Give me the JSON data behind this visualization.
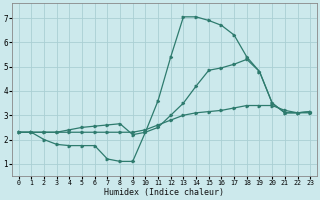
{
  "xlabel": "Humidex (Indice chaleur)",
  "bg_color": "#cce9ec",
  "grid_color": "#aacfd4",
  "line_color": "#2e7b6e",
  "xlim": [
    -0.5,
    23.5
  ],
  "ylim": [
    0.5,
    7.6
  ],
  "yticks": [
    1,
    2,
    3,
    4,
    5,
    6,
    7
  ],
  "xticks": [
    0,
    1,
    2,
    3,
    4,
    5,
    6,
    7,
    8,
    9,
    10,
    11,
    12,
    13,
    14,
    15,
    16,
    17,
    18,
    19,
    20,
    21,
    22,
    23
  ],
  "curve1_x": [
    0,
    1,
    2,
    3,
    4,
    5,
    6,
    7,
    8,
    9,
    10,
    11,
    12,
    13,
    14,
    15,
    16,
    17,
    18,
    19,
    20,
    21,
    22,
    23
  ],
  "curve1_y": [
    2.3,
    2.3,
    2.3,
    2.3,
    2.3,
    2.3,
    2.3,
    2.3,
    2.3,
    2.3,
    2.4,
    2.6,
    2.8,
    3.0,
    3.1,
    3.15,
    3.2,
    3.3,
    3.4,
    3.4,
    3.4,
    3.2,
    3.1,
    3.1
  ],
  "curve2_x": [
    0,
    1,
    2,
    3,
    4,
    5,
    6,
    7,
    8,
    9,
    10,
    11,
    12,
    13,
    14,
    15,
    16,
    17,
    18,
    19,
    20,
    21,
    22,
    23
  ],
  "curve2_y": [
    2.3,
    2.3,
    2.3,
    2.3,
    2.4,
    2.5,
    2.55,
    2.6,
    2.65,
    2.2,
    2.3,
    2.5,
    3.0,
    3.5,
    4.2,
    4.85,
    4.95,
    5.1,
    5.3,
    4.8,
    3.5,
    3.1,
    3.1,
    3.15
  ],
  "curve3_x": [
    0,
    1,
    2,
    3,
    4,
    5,
    6,
    7,
    8,
    9,
    10,
    11,
    12,
    13,
    14,
    15,
    16,
    17,
    18,
    19,
    20,
    21,
    22,
    23
  ],
  "curve3_y": [
    2.3,
    2.3,
    2.0,
    1.8,
    1.75,
    1.75,
    1.75,
    1.2,
    1.1,
    1.1,
    2.3,
    3.6,
    5.4,
    7.05,
    7.05,
    6.9,
    6.7,
    6.3,
    5.4,
    4.8,
    3.5,
    3.1,
    3.1,
    3.15
  ]
}
